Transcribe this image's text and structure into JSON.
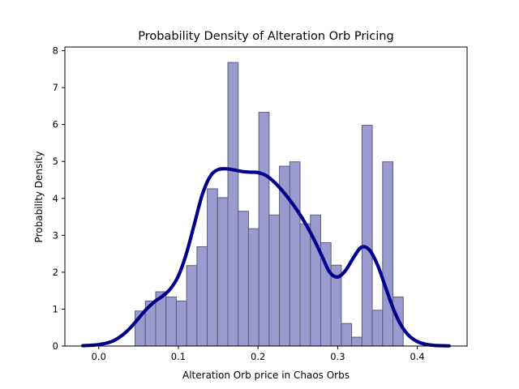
{
  "chart_data": {
    "type": "bar",
    "title": "Probability Density of Alteration Orb Pricing",
    "xlabel": "Alteration Orb price in Chaos Orbs",
    "ylabel": "Probability Density",
    "xlim": [
      -0.0425,
      0.4625
    ],
    "ylim": [
      0,
      8.1
    ],
    "xticks": [
      {
        "value": 0.0,
        "label": "0.0"
      },
      {
        "value": 0.1,
        "label": "0.1"
      },
      {
        "value": 0.2,
        "label": "0.2"
      },
      {
        "value": 0.3,
        "label": "0.3"
      },
      {
        "value": 0.4,
        "label": "0.4"
      }
    ],
    "yticks": [
      {
        "value": 0,
        "label": "0"
      },
      {
        "value": 1,
        "label": "1"
      },
      {
        "value": 2,
        "label": "2"
      },
      {
        "value": 3,
        "label": "3"
      },
      {
        "value": 4,
        "label": "4"
      },
      {
        "value": 5,
        "label": "5"
      },
      {
        "value": 6,
        "label": "6"
      },
      {
        "value": 7,
        "label": "7"
      },
      {
        "value": 8,
        "label": "8"
      }
    ],
    "histogram": {
      "bin_start": 0.0456,
      "bin_width": 0.01295,
      "values": [
        0.95,
        1.22,
        1.47,
        1.33,
        1.22,
        2.18,
        2.69,
        4.26,
        4.02,
        7.68,
        3.65,
        3.18,
        6.33,
        3.55,
        4.87,
        4.99,
        3.31,
        3.55,
        2.8,
        2.19,
        0.61,
        0.24,
        5.98,
        0.97,
        4.99,
        1.33
      ],
      "fill_color": "#9a9acf",
      "edge_color": "#5c5c7a"
    },
    "kde": {
      "x": [
        -0.02,
        -0.01,
        0.0,
        0.01,
        0.02,
        0.03,
        0.04,
        0.05,
        0.06,
        0.07,
        0.08,
        0.09,
        0.1,
        0.11,
        0.12,
        0.13,
        0.14,
        0.15,
        0.16,
        0.17,
        0.18,
        0.19,
        0.2,
        0.21,
        0.22,
        0.23,
        0.24,
        0.25,
        0.26,
        0.27,
        0.28,
        0.29,
        0.3,
        0.31,
        0.32,
        0.33,
        0.34,
        0.35,
        0.36,
        0.37,
        0.38,
        0.39,
        0.4,
        0.41,
        0.42,
        0.43,
        0.44
      ],
      "y": [
        0.01,
        0.02,
        0.04,
        0.08,
        0.16,
        0.3,
        0.5,
        0.75,
        1.0,
        1.2,
        1.35,
        1.55,
        1.9,
        2.5,
        3.3,
        4.1,
        4.6,
        4.78,
        4.8,
        4.77,
        4.73,
        4.71,
        4.7,
        4.62,
        4.45,
        4.22,
        3.95,
        3.65,
        3.3,
        2.9,
        2.45,
        2.0,
        1.87,
        2.05,
        2.4,
        2.68,
        2.6,
        2.2,
        1.6,
        1.0,
        0.55,
        0.27,
        0.12,
        0.05,
        0.02,
        0.01,
        0.004
      ],
      "color": "#00008b"
    }
  }
}
